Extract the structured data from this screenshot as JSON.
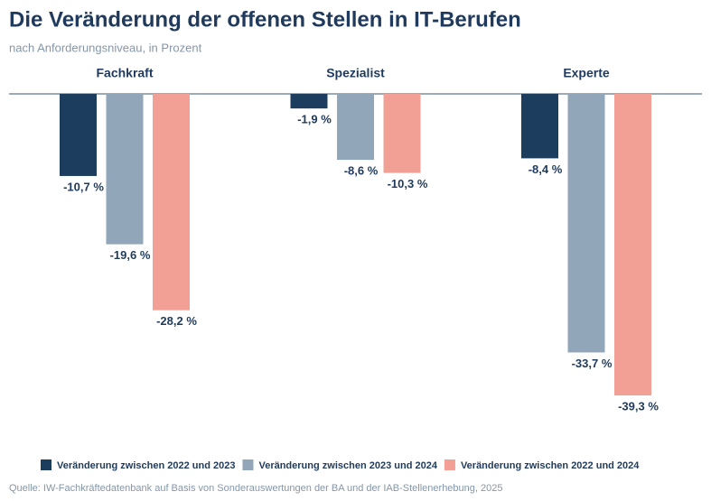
{
  "chart_data": {
    "type": "bar",
    "title": "Die Veränderung der offenen Stellen in IT-Berufen",
    "subtitle": "nach Anforderungsniveau, in Prozent",
    "source": "Quelle: IW-Fachkräftedatenbank auf Basis von Sonderauswertungen der BA und der IAB-Stellenerhebung, 2025",
    "categories": [
      "Fachkraft",
      "Spezialist",
      "Experte"
    ],
    "series": [
      {
        "name": "Veränderung zwischen 2022 und 2023",
        "color": "#1c3d5e",
        "values": [
          -10.7,
          -1.9,
          -8.4
        ],
        "value_labels": [
          "-10,7 %",
          "-1,9 %",
          "-8,4 %"
        ]
      },
      {
        "name": "Veränderung zwischen 2023 und 2024",
        "color": "#92a6ba",
        "values": [
          -19.6,
          -8.6,
          -33.7
        ],
        "value_labels": [
          "-19,6 %",
          "-8,6 %",
          "-33,7 %"
        ]
      },
      {
        "name": "Veränderung zwischen 2022 und 2024",
        "color": "#f2a095",
        "values": [
          -28.2,
          -10.3,
          -39.3
        ],
        "value_labels": [
          "-28,2 %",
          "-10,3 %",
          "-39,3 %"
        ]
      }
    ]
  }
}
